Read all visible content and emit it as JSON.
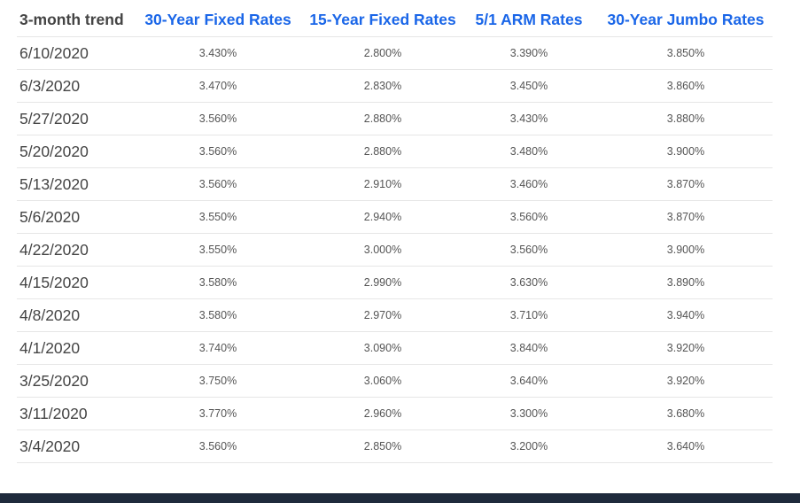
{
  "table": {
    "headers": {
      "trend": "3-month trend",
      "fixed30": "30-Year Fixed Rates",
      "fixed15": "15-Year Fixed Rates",
      "arm51": "5/1 ARM Rates",
      "jumbo30": "30-Year Jumbo Rates"
    },
    "rows": [
      {
        "date": "6/10/2020",
        "fixed30": "3.430%",
        "fixed15": "2.800%",
        "arm51": "3.390%",
        "jumbo30": "3.850%"
      },
      {
        "date": "6/3/2020",
        "fixed30": "3.470%",
        "fixed15": "2.830%",
        "arm51": "3.450%",
        "jumbo30": "3.860%"
      },
      {
        "date": "5/27/2020",
        "fixed30": "3.560%",
        "fixed15": "2.880%",
        "arm51": "3.430%",
        "jumbo30": "3.880%"
      },
      {
        "date": "5/20/2020",
        "fixed30": "3.560%",
        "fixed15": "2.880%",
        "arm51": "3.480%",
        "jumbo30": "3.900%"
      },
      {
        "date": "5/13/2020",
        "fixed30": "3.560%",
        "fixed15": "2.910%",
        "arm51": "3.460%",
        "jumbo30": "3.870%"
      },
      {
        "date": "5/6/2020",
        "fixed30": "3.550%",
        "fixed15": "2.940%",
        "arm51": "3.560%",
        "jumbo30": "3.870%"
      },
      {
        "date": "4/22/2020",
        "fixed30": "3.550%",
        "fixed15": "3.000%",
        "arm51": "3.560%",
        "jumbo30": "3.900%"
      },
      {
        "date": "4/15/2020",
        "fixed30": "3.580%",
        "fixed15": "2.990%",
        "arm51": "3.630%",
        "jumbo30": "3.890%"
      },
      {
        "date": "4/8/2020",
        "fixed30": "3.580%",
        "fixed15": "2.970%",
        "arm51": "3.710%",
        "jumbo30": "3.940%"
      },
      {
        "date": "4/1/2020",
        "fixed30": "3.740%",
        "fixed15": "3.090%",
        "arm51": "3.840%",
        "jumbo30": "3.920%"
      },
      {
        "date": "3/25/2020",
        "fixed30": "3.750%",
        "fixed15": "3.060%",
        "arm51": "3.640%",
        "jumbo30": "3.920%"
      },
      {
        "date": "3/11/2020",
        "fixed30": "3.770%",
        "fixed15": "2.960%",
        "arm51": "3.300%",
        "jumbo30": "3.680%"
      },
      {
        "date": "3/4/2020",
        "fixed30": "3.560%",
        "fixed15": "2.850%",
        "arm51": "3.200%",
        "jumbo30": "3.640%"
      }
    ]
  },
  "colors": {
    "link": "#1a66e8",
    "divider": "#e6e6e6",
    "footer_bar": "#1f2a3c"
  }
}
